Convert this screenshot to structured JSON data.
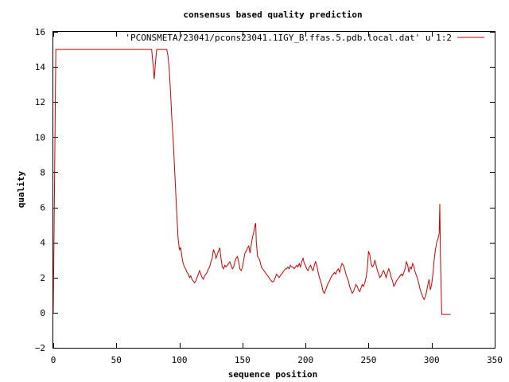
{
  "chart_data": {
    "type": "line",
    "title": "consensus based quality prediction",
    "xlabel": "sequence position",
    "ylabel": "quality",
    "xlim": [
      0,
      350
    ],
    "ylim": [
      -2,
      16
    ],
    "xticks": [
      0,
      50,
      100,
      150,
      200,
      250,
      300,
      350
    ],
    "yticks": [
      -2,
      0,
      2,
      4,
      6,
      8,
      10,
      12,
      14,
      16
    ],
    "x_tick_labels": [
      "0",
      "50",
      "100",
      "150",
      "200",
      "250",
      "300",
      "350"
    ],
    "y_tick_labels": [
      "−2",
      "0",
      "2",
      "4",
      "6",
      "8",
      "10",
      "12",
      "14",
      "16"
    ],
    "grid": false,
    "legend_position": "top-right",
    "series": [
      {
        "name": "'PCONSMETA/23041/pcons23041.1IGY_B.ffas.5.pdb.local.dat' u 1:2",
        "color": "#cc0000",
        "points": [
          [
            0,
            0
          ],
          [
            1,
            7.5
          ],
          [
            2,
            15
          ],
          [
            10,
            15
          ],
          [
            20,
            15
          ],
          [
            30,
            15
          ],
          [
            40,
            15
          ],
          [
            50,
            15
          ],
          [
            60,
            15
          ],
          [
            70,
            15
          ],
          [
            78,
            15
          ],
          [
            79,
            14.2
          ],
          [
            80,
            13.3
          ],
          [
            81,
            14.2
          ],
          [
            82,
            15
          ],
          [
            86,
            15
          ],
          [
            90,
            15
          ],
          [
            91,
            14.6
          ],
          [
            92,
            13.8
          ],
          [
            93,
            12.5
          ],
          [
            94,
            11
          ],
          [
            95,
            10
          ],
          [
            96,
            8.5
          ],
          [
            97,
            7
          ],
          [
            98,
            5.5
          ],
          [
            99,
            4.2
          ],
          [
            100,
            3.6
          ],
          [
            101,
            3.7
          ],
          [
            102,
            3.2
          ],
          [
            103,
            2.8
          ],
          [
            104,
            2.6
          ],
          [
            105,
            2.5
          ],
          [
            106,
            2.3
          ],
          [
            107,
            2.2
          ],
          [
            108,
            2.0
          ],
          [
            109,
            2.1
          ],
          [
            110,
            1.9
          ],
          [
            112,
            1.7
          ],
          [
            113,
            1.8
          ],
          [
            114,
            2.0
          ],
          [
            115,
            2.2
          ],
          [
            116,
            2.4
          ],
          [
            117,
            2.2
          ],
          [
            118,
            2.0
          ],
          [
            119,
            1.9
          ],
          [
            120,
            2.1
          ],
          [
            121,
            2.2
          ],
          [
            122,
            2.3
          ],
          [
            123,
            2.5
          ],
          [
            124,
            2.6
          ],
          [
            125,
            2.9
          ],
          [
            126,
            3.1
          ],
          [
            127,
            3.6
          ],
          [
            128,
            3.4
          ],
          [
            129,
            3.1
          ],
          [
            130,
            3.3
          ],
          [
            131,
            3.5
          ],
          [
            132,
            3.7
          ],
          [
            133,
            3.1
          ],
          [
            134,
            2.6
          ],
          [
            135,
            2.5
          ],
          [
            136,
            2.7
          ],
          [
            137,
            2.6
          ],
          [
            138,
            2.7
          ],
          [
            139,
            2.8
          ],
          [
            140,
            2.9
          ],
          [
            141,
            2.7
          ],
          [
            142,
            2.5
          ],
          [
            143,
            2.6
          ],
          [
            144,
            2.9
          ],
          [
            145,
            3.1
          ],
          [
            146,
            3.2
          ],
          [
            147,
            2.9
          ],
          [
            148,
            2.5
          ],
          [
            149,
            2.4
          ],
          [
            150,
            2.6
          ],
          [
            151,
            3.0
          ],
          [
            152,
            3.4
          ],
          [
            153,
            3.5
          ],
          [
            154,
            3.7
          ],
          [
            155,
            3.8
          ],
          [
            156,
            3.4
          ],
          [
            157,
            3.9
          ],
          [
            158,
            4.3
          ],
          [
            159,
            4.6
          ],
          [
            160,
            5.0
          ],
          [
            160.5,
            5.1
          ],
          [
            161,
            4.0
          ],
          [
            162,
            3.2
          ],
          [
            163,
            3.1
          ],
          [
            164,
            2.9
          ],
          [
            165,
            2.6
          ],
          [
            166,
            2.5
          ],
          [
            167,
            2.4
          ],
          [
            168,
            2.3
          ],
          [
            169,
            2.2
          ],
          [
            170,
            2.1
          ],
          [
            171,
            2.0
          ],
          [
            172,
            1.9
          ],
          [
            173,
            1.8
          ],
          [
            174,
            1.75
          ],
          [
            175,
            1.8
          ],
          [
            176,
            2.0
          ],
          [
            177,
            2.2
          ],
          [
            178,
            2.1
          ],
          [
            179,
            2.0
          ],
          [
            180,
            2.1
          ],
          [
            181,
            2.2
          ],
          [
            182,
            2.3
          ],
          [
            183,
            2.4
          ],
          [
            184,
            2.5
          ],
          [
            185,
            2.5
          ],
          [
            186,
            2.6
          ],
          [
            187,
            2.5
          ],
          [
            188,
            2.7
          ],
          [
            189,
            2.6
          ],
          [
            190,
            2.6
          ],
          [
            191,
            2.5
          ],
          [
            192,
            2.6
          ],
          [
            193,
            2.7
          ],
          [
            194,
            2.6
          ],
          [
            195,
            2.8
          ],
          [
            196,
            2.6
          ],
          [
            197,
            2.9
          ],
          [
            198,
            3.1
          ],
          [
            199,
            2.8
          ],
          [
            200,
            2.7
          ],
          [
            201,
            2.5
          ],
          [
            202,
            2.4
          ],
          [
            203,
            2.6
          ],
          [
            204,
            2.7
          ],
          [
            205,
            2.5
          ],
          [
            206,
            2.4
          ],
          [
            207,
            2.7
          ],
          [
            208,
            2.9
          ],
          [
            209,
            2.7
          ],
          [
            210,
            2.3
          ],
          [
            211,
            2.0
          ],
          [
            212,
            1.8
          ],
          [
            213,
            1.5
          ],
          [
            214,
            1.2
          ],
          [
            215,
            1.1
          ],
          [
            216,
            1.3
          ],
          [
            217,
            1.5
          ],
          [
            218,
            1.7
          ],
          [
            219,
            1.8
          ],
          [
            220,
            2.0
          ],
          [
            221,
            2.1
          ],
          [
            222,
            2.2
          ],
          [
            223,
            2.3
          ],
          [
            224,
            2.2
          ],
          [
            225,
            2.4
          ],
          [
            226,
            2.5
          ],
          [
            227,
            2.3
          ],
          [
            228,
            2.6
          ],
          [
            229,
            2.8
          ],
          [
            230,
            2.7
          ],
          [
            231,
            2.5
          ],
          [
            232,
            2.2
          ],
          [
            233,
            2.0
          ],
          [
            234,
            1.8
          ],
          [
            235,
            1.5
          ],
          [
            236,
            1.3
          ],
          [
            237,
            1.1
          ],
          [
            238,
            1.2
          ],
          [
            239,
            1.4
          ],
          [
            240,
            1.6
          ],
          [
            241,
            1.5
          ],
          [
            242,
            1.3
          ],
          [
            243,
            1.2
          ],
          [
            244,
            1.4
          ],
          [
            245,
            1.6
          ],
          [
            246,
            1.5
          ],
          [
            247,
            1.7
          ],
          [
            248,
            2.0
          ],
          [
            249,
            2.5
          ],
          [
            250,
            3.5
          ],
          [
            251,
            3.3
          ],
          [
            252,
            2.8
          ],
          [
            253,
            2.6
          ],
          [
            254,
            2.7
          ],
          [
            255,
            3.0
          ],
          [
            256,
            2.7
          ],
          [
            257,
            2.4
          ],
          [
            258,
            2.2
          ],
          [
            259,
            2.0
          ],
          [
            260,
            2.1
          ],
          [
            261,
            2.3
          ],
          [
            262,
            2.4
          ],
          [
            263,
            2.2
          ],
          [
            264,
            2.0
          ],
          [
            265,
            2.3
          ],
          [
            266,
            2.5
          ],
          [
            267,
            2.3
          ],
          [
            268,
            2.0
          ],
          [
            269,
            1.8
          ],
          [
            270,
            1.5
          ],
          [
            271,
            1.6
          ],
          [
            272,
            1.8
          ],
          [
            273,
            1.9
          ],
          [
            274,
            2.0
          ],
          [
            275,
            2.1
          ],
          [
            276,
            2.2
          ],
          [
            277,
            2.1
          ],
          [
            278,
            2.3
          ],
          [
            279,
            2.5
          ],
          [
            280,
            2.9
          ],
          [
            281,
            2.7
          ],
          [
            282,
            2.3
          ],
          [
            283,
            2.6
          ],
          [
            284,
            2.5
          ],
          [
            285,
            2.8
          ],
          [
            286,
            2.6
          ],
          [
            287,
            2.3
          ],
          [
            288,
            2.1
          ],
          [
            289,
            1.9
          ],
          [
            290,
            1.6
          ],
          [
            291,
            1.3
          ],
          [
            292,
            1.1
          ],
          [
            293,
            0.9
          ],
          [
            294,
            0.75
          ],
          [
            295,
            0.9
          ],
          [
            296,
            1.2
          ],
          [
            297,
            1.6
          ],
          [
            298,
            1.9
          ],
          [
            299,
            1.3
          ],
          [
            300,
            1.6
          ],
          [
            301,
            2.2
          ],
          [
            302,
            3.0
          ],
          [
            303,
            3.6
          ],
          [
            304,
            4.0
          ],
          [
            305,
            4.2
          ],
          [
            306,
            4.5
          ],
          [
            306.5,
            6.2
          ],
          [
            307,
            3.2
          ],
          [
            308,
            -0.1
          ],
          [
            311,
            -0.1
          ],
          [
            315,
            -0.1
          ]
        ]
      }
    ]
  }
}
